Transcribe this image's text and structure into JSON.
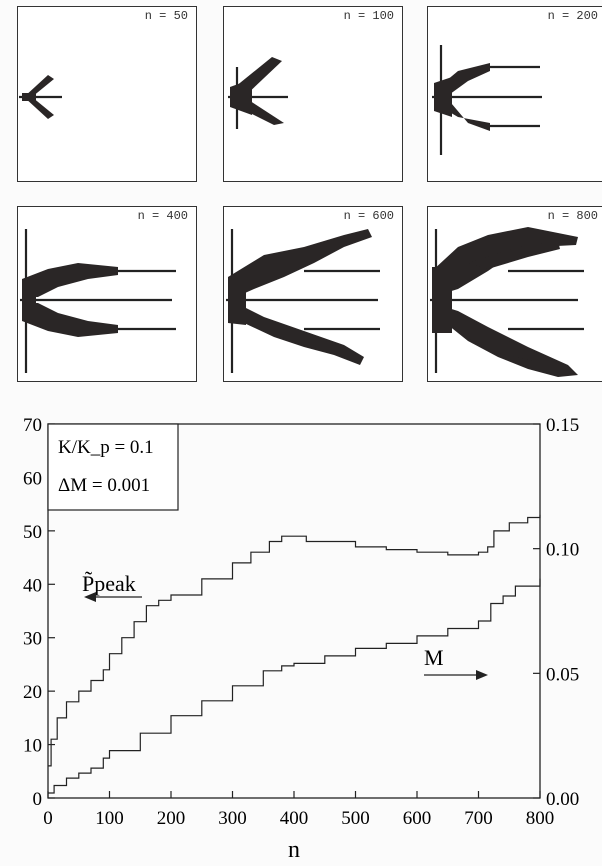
{
  "panels": [
    {
      "label": "n = 50"
    },
    {
      "label": "n = 100"
    },
    {
      "label": "n = 200"
    },
    {
      "label": "n = 400"
    },
    {
      "label": "n = 600"
    },
    {
      "label": "n = 800"
    }
  ],
  "chart_data": {
    "type": "line",
    "xlabel": "n",
    "x_ticks": [
      "0",
      "100",
      "200",
      "300",
      "400",
      "500",
      "600",
      "700",
      "800"
    ],
    "y_left_ticks": [
      "0",
      "10",
      "20",
      "30",
      "40",
      "50",
      "60",
      "70"
    ],
    "y_right_ticks": [
      "0.00",
      "0.05",
      "0.10",
      "0.15"
    ],
    "xlim": [
      0,
      800
    ],
    "ylim_left": [
      0,
      70
    ],
    "ylim_right": [
      0,
      0.15
    ],
    "legend": {
      "line1": "K/K_p = 0.1",
      "line2": "ΔM = 0.001",
      "placement": "top-left"
    },
    "annotations": {
      "p_peak": "P̃peak",
      "m": "M"
    },
    "series": [
      {
        "name": "P̃peak",
        "axis": "left",
        "step": true,
        "x": [
          0,
          5,
          15,
          30,
          50,
          70,
          90,
          100,
          120,
          140,
          160,
          180,
          200,
          250,
          300,
          330,
          360,
          380,
          400,
          420,
          500,
          550,
          600,
          650,
          680,
          700,
          715,
          725,
          750,
          780,
          800
        ],
        "y": [
          6,
          11,
          15,
          18,
          20,
          22,
          24,
          27,
          30,
          33,
          36,
          37,
          38,
          41,
          44,
          46,
          48,
          49,
          49,
          48,
          47,
          46.5,
          46,
          45.5,
          45.5,
          46,
          47,
          50,
          51.5,
          52.5,
          53
        ]
      },
      {
        "name": "M",
        "axis": "right",
        "step": true,
        "x": [
          0,
          10,
          30,
          50,
          70,
          90,
          100,
          150,
          200,
          250,
          300,
          350,
          380,
          400,
          450,
          500,
          550,
          600,
          650,
          700,
          720,
          740,
          760,
          800
        ],
        "y": [
          0.002,
          0.005,
          0.008,
          0.01,
          0.012,
          0.016,
          0.019,
          0.026,
          0.033,
          0.039,
          0.045,
          0.051,
          0.053,
          0.054,
          0.057,
          0.06,
          0.062,
          0.065,
          0.068,
          0.071,
          0.078,
          0.081,
          0.085,
          0.088
        ]
      }
    ]
  }
}
